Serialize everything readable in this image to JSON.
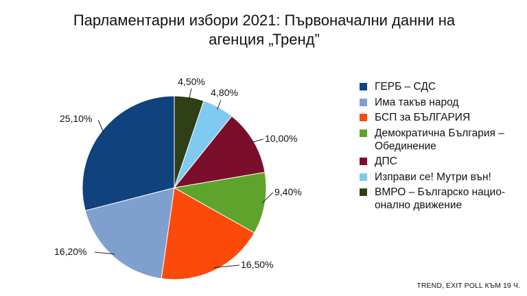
{
  "chart_data": {
    "type": "pie",
    "title": [
      "Парламентарни избори 2021: Първоначални данни на",
      "агенция „Тренд”"
    ],
    "slices": [
      {
        "name": "ВМРО – Българско национално движение",
        "label": "4,50%",
        "value": 4.5,
        "color": "#2f3f16"
      },
      {
        "name": "Изправи се! Мутри вън!",
        "label": "4,80%",
        "value": 4.8,
        "color": "#7fcaf0"
      },
      {
        "name": "ДПС",
        "label": "10,00%",
        "value": 10.0,
        "color": "#7b0f2b"
      },
      {
        "name": "Демократична България – Обединение",
        "label": "9,40%",
        "value": 9.4,
        "color": "#5ea32b"
      },
      {
        "name": "БСП за БЪЛГАРИЯ",
        "label": "16,50%",
        "value": 16.5,
        "color": "#fb4a0a"
      },
      {
        "name": "Има такъв народ",
        "label": "16,20%",
        "value": 16.2,
        "color": "#7f9fce"
      },
      {
        "name": "ГЕРБ – СДС",
        "label": "25,10%",
        "value": 25.1,
        "color": "#10437d"
      }
    ],
    "legend": [
      {
        "lines": [
          "ГЕРБ – СДС"
        ],
        "color": "#10437d"
      },
      {
        "lines": [
          "Има такъв народ"
        ],
        "color": "#7f9fce"
      },
      {
        "lines": [
          "БСП за БЪЛГАРИЯ"
        ],
        "color": "#fb4a0a"
      },
      {
        "lines": [
          "Демократична България –",
          "Обединение"
        ],
        "color": "#5ea32b"
      },
      {
        "lines": [
          "ДПС"
        ],
        "color": "#7b0f2b"
      },
      {
        "lines": [
          "Изправи се! Мутри вън!"
        ],
        "color": "#7fcaf0"
      },
      {
        "lines": [
          "ВМРО – Българско нацио-",
          "онално движение"
        ],
        "color": "#2f3f16"
      }
    ],
    "legend_position": "right"
  },
  "source": "TREND, EXIT POLL КЪМ 19 Ч."
}
